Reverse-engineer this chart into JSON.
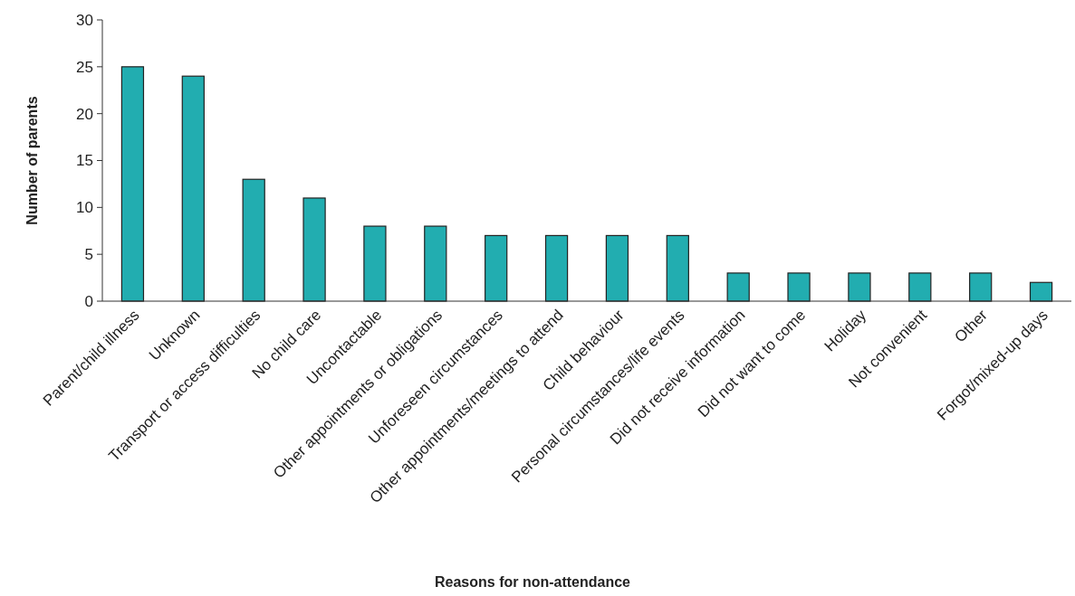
{
  "chart_data": {
    "type": "bar",
    "xlabel": "Reasons for non-attendance",
    "ylabel": "Number of parents",
    "categories": [
      "Parent/child illness",
      "Unknown",
      "Transport or access difficulties",
      "No child care",
      "Uncontactable",
      "Other appointments or obligations",
      "Unforeseen circumstances",
      "Other appointments/meetings to attend",
      "Child behaviour",
      "Personal circumstances/life events",
      "Did not receive information",
      "Did not want to come",
      "Holiday",
      "Not convenient",
      "Other",
      "Forgot/mixed-up days"
    ],
    "values": [
      25,
      24,
      13,
      11,
      8,
      8,
      7,
      7,
      7,
      7,
      3,
      3,
      3,
      3,
      3,
      2
    ],
    "color": "#22adb0",
    "ylim": [
      0,
      30
    ],
    "yticks": [
      0,
      5,
      10,
      15,
      20,
      25,
      30
    ],
    "grid": false
  }
}
